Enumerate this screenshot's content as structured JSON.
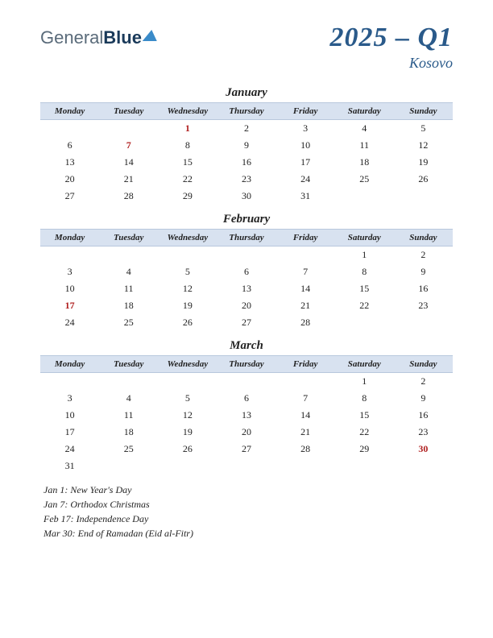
{
  "logo": {
    "text1": "General",
    "text2": "Blue"
  },
  "title": {
    "main": "2025 – Q1",
    "sub": "Kosovo"
  },
  "dayHeaders": [
    "Monday",
    "Tuesday",
    "Wednesday",
    "Thursday",
    "Friday",
    "Saturday",
    "Sunday"
  ],
  "colors": {
    "header_bg": "#d8e2f0",
    "title_color": "#2a5a8a",
    "holiday_color": "#b02020",
    "text_color": "#222222"
  },
  "months": [
    {
      "name": "January",
      "weeks": [
        [
          {
            "d": ""
          },
          {
            "d": ""
          },
          {
            "d": "1",
            "h": true
          },
          {
            "d": "2"
          },
          {
            "d": "3"
          },
          {
            "d": "4"
          },
          {
            "d": "5"
          }
        ],
        [
          {
            "d": "6"
          },
          {
            "d": "7",
            "h": true
          },
          {
            "d": "8"
          },
          {
            "d": "9"
          },
          {
            "d": "10"
          },
          {
            "d": "11"
          },
          {
            "d": "12"
          }
        ],
        [
          {
            "d": "13"
          },
          {
            "d": "14"
          },
          {
            "d": "15"
          },
          {
            "d": "16"
          },
          {
            "d": "17"
          },
          {
            "d": "18"
          },
          {
            "d": "19"
          }
        ],
        [
          {
            "d": "20"
          },
          {
            "d": "21"
          },
          {
            "d": "22"
          },
          {
            "d": "23"
          },
          {
            "d": "24"
          },
          {
            "d": "25"
          },
          {
            "d": "26"
          }
        ],
        [
          {
            "d": "27"
          },
          {
            "d": "28"
          },
          {
            "d": "29"
          },
          {
            "d": "30"
          },
          {
            "d": "31"
          },
          {
            "d": ""
          },
          {
            "d": ""
          }
        ]
      ]
    },
    {
      "name": "February",
      "weeks": [
        [
          {
            "d": ""
          },
          {
            "d": ""
          },
          {
            "d": ""
          },
          {
            "d": ""
          },
          {
            "d": ""
          },
          {
            "d": "1"
          },
          {
            "d": "2"
          }
        ],
        [
          {
            "d": "3"
          },
          {
            "d": "4"
          },
          {
            "d": "5"
          },
          {
            "d": "6"
          },
          {
            "d": "7"
          },
          {
            "d": "8"
          },
          {
            "d": "9"
          }
        ],
        [
          {
            "d": "10"
          },
          {
            "d": "11"
          },
          {
            "d": "12"
          },
          {
            "d": "13"
          },
          {
            "d": "14"
          },
          {
            "d": "15"
          },
          {
            "d": "16"
          }
        ],
        [
          {
            "d": "17",
            "h": true
          },
          {
            "d": "18"
          },
          {
            "d": "19"
          },
          {
            "d": "20"
          },
          {
            "d": "21"
          },
          {
            "d": "22"
          },
          {
            "d": "23"
          }
        ],
        [
          {
            "d": "24"
          },
          {
            "d": "25"
          },
          {
            "d": "26"
          },
          {
            "d": "27"
          },
          {
            "d": "28"
          },
          {
            "d": ""
          },
          {
            "d": ""
          }
        ]
      ]
    },
    {
      "name": "March",
      "weeks": [
        [
          {
            "d": ""
          },
          {
            "d": ""
          },
          {
            "d": ""
          },
          {
            "d": ""
          },
          {
            "d": ""
          },
          {
            "d": "1"
          },
          {
            "d": "2"
          }
        ],
        [
          {
            "d": "3"
          },
          {
            "d": "4"
          },
          {
            "d": "5"
          },
          {
            "d": "6"
          },
          {
            "d": "7"
          },
          {
            "d": "8"
          },
          {
            "d": "9"
          }
        ],
        [
          {
            "d": "10"
          },
          {
            "d": "11"
          },
          {
            "d": "12"
          },
          {
            "d": "13"
          },
          {
            "d": "14"
          },
          {
            "d": "15"
          },
          {
            "d": "16"
          }
        ],
        [
          {
            "d": "17"
          },
          {
            "d": "18"
          },
          {
            "d": "19"
          },
          {
            "d": "20"
          },
          {
            "d": "21"
          },
          {
            "d": "22"
          },
          {
            "d": "23"
          }
        ],
        [
          {
            "d": "24"
          },
          {
            "d": "25"
          },
          {
            "d": "26"
          },
          {
            "d": "27"
          },
          {
            "d": "28"
          },
          {
            "d": "29"
          },
          {
            "d": "30",
            "h": true
          }
        ],
        [
          {
            "d": "31"
          },
          {
            "d": ""
          },
          {
            "d": ""
          },
          {
            "d": ""
          },
          {
            "d": ""
          },
          {
            "d": ""
          },
          {
            "d": ""
          }
        ]
      ]
    }
  ],
  "holidays": [
    "Jan 1: New Year's Day",
    "Jan 7: Orthodox Christmas",
    "Feb 17: Independence Day",
    "Mar 30: End of Ramadan (Eid al-Fitr)"
  ]
}
